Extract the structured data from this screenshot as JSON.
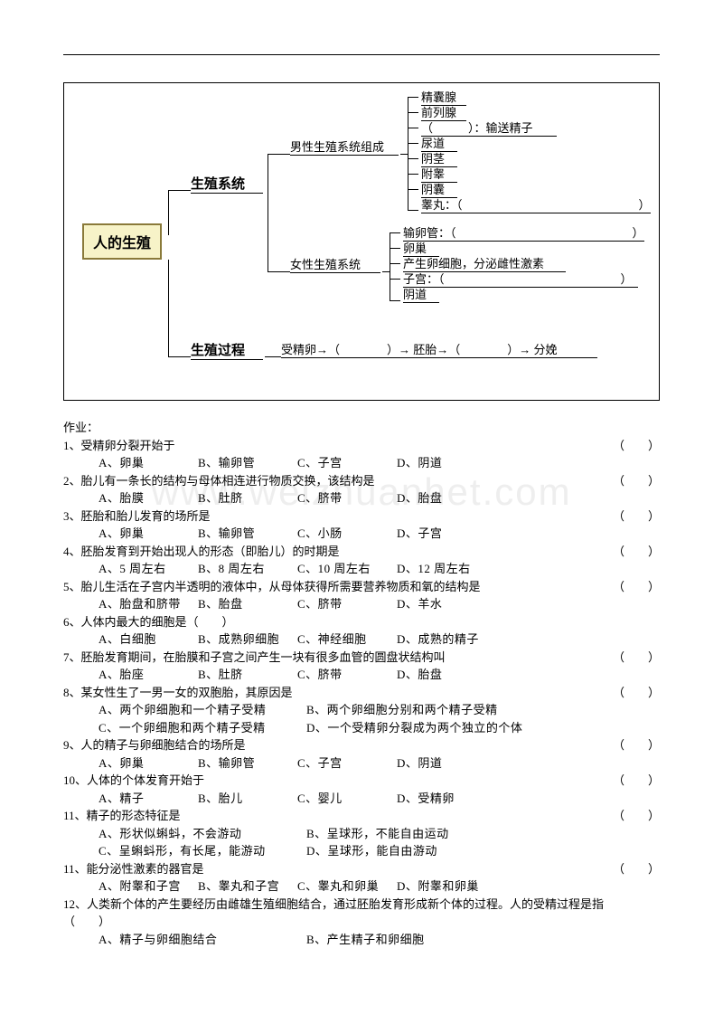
{
  "diagram": {
    "root": "人的生殖",
    "branch1": "生殖系统",
    "branch2": "生殖过程",
    "male_title": "男性生殖系统组成",
    "female_title": "女性生殖系统",
    "male_items": {
      "i1": "精囊腺",
      "i2": "前列腺",
      "i3_blank": "（　　　）：输送精子",
      "i4": "尿道",
      "i5": "阴茎",
      "i6": "附睾",
      "i7": "阴囊",
      "i8": "睾丸：（　　　　　　　　　　　　　　　）"
    },
    "female_items": {
      "i1": "输卵管：（　　　　　　　　　　　　　　　）",
      "i2": "卵巢",
      "i2b": "产生卵细胞，分泌雌性激素",
      "i3": "子宫：（　　　　　　　　　　　　　　　）",
      "i4": "阴道"
    },
    "process": "受精卵→（　　　　）→ 胚胎→（　　　　）→ 分娩"
  },
  "homework_title": "作业：",
  "questions": [
    {
      "num": "1、",
      "text": "受精卵分裂开始于",
      "paren": "（　　）",
      "opts": [
        "A、卵巢",
        "B、输卵管",
        "C、子宫",
        "D、阴道"
      ]
    },
    {
      "num": "2、",
      "text": "胎儿有一条长的结构与母体相连进行物质交换，该结构是",
      "paren": "（　　）",
      "opts": [
        "A、胎膜",
        "B、肚脐",
        "C、脐带",
        "D、胎盘"
      ]
    },
    {
      "num": "3、",
      "text": "胚胎和胎儿发育的场所是",
      "paren": "（　　）",
      "opts": [
        "A、卵巢",
        "B、输卵管",
        "C、小肠",
        "D、子宫"
      ]
    },
    {
      "num": "4、",
      "text": "胚胎发育到开始出现人的形态（即胎儿）的时期是",
      "paren": "（　　）",
      "opts": [
        "A、5 周左右",
        "B、8 周左右",
        "C、10 周左右",
        "D、12 周左右"
      ]
    },
    {
      "num": "5、",
      "text": "胎儿生活在子宫内半透明的液体中，从母体获得所需要营养物质和氧的结构是",
      "paren": "（　　）",
      "opts": [
        "A、胎盘和脐带",
        "B、胎盘",
        "C、脐带",
        "D、羊水"
      ]
    },
    {
      "num": "6、",
      "text": "人体内最大的细胞是（　　）",
      "paren": "",
      "opts": [
        "A、白细胞",
        "B、成熟卵细胞",
        "C、神经细胞",
        "D、成熟的精子"
      ]
    },
    {
      "num": "7、",
      "text": "胚胎发育期间，在胎膜和子宫之间产生一块有很多血管的圆盘状结构叫",
      "paren": "（　　）",
      "opts": [
        "A、胎座",
        "B、肚脐",
        "C、脐带",
        "D、胎盘"
      ]
    },
    {
      "num": "8、",
      "text": "某女性生了一男一女的双胞胎，其原因是",
      "paren": "（　　）",
      "opts2": [
        "A、两个卵细胞和一个精子受精",
        "B、两个卵细胞分别和两个精子受精",
        "C、一个卵细胞和两个精子受精",
        "D、一个受精卵分裂成为两个独立的个体"
      ]
    },
    {
      "num": "9、",
      "text": "人的精子与卵细胞结合的场所是",
      "paren": "（　　）",
      "opts": [
        "A、卵巢",
        "B、输卵管",
        "C、子宫",
        "D、阴道"
      ]
    },
    {
      "num": "10、",
      "text": "人体的个体发育开始于",
      "paren": "（　　）",
      "opts": [
        "A、精子",
        "B、胎儿",
        "C、婴儿",
        "D、受精卵"
      ]
    },
    {
      "num": "11、",
      "text": "精子的形态特征是",
      "paren": "（　　）",
      "opts2": [
        "A、形状似蝌蚪，不会游动",
        "B、呈球形，不能自由运动",
        "C、呈蝌蚪形，有长尾，能游动",
        "D、呈球形，能自由游动"
      ]
    },
    {
      "num": "11、",
      "text": "能分泌性激素的器官是",
      "paren": "（　　）",
      "opts": [
        "A、附睾和子宫",
        "B、睾丸和子宫",
        "C、睾丸和卵巢",
        "D、附睾和卵巢"
      ]
    },
    {
      "num": "12、",
      "text": "人类新个体的产生要经历由雌雄生殖细胞结合，通过胚胎发育形成新个体的过程。人的受精过程是指",
      "paren": "（　　）",
      "opts2": [
        "A、精子与卵细胞结合",
        "B、产生精子和卵细胞"
      ],
      "long": true
    }
  ],
  "watermark": "www.weizhuanhet.com"
}
